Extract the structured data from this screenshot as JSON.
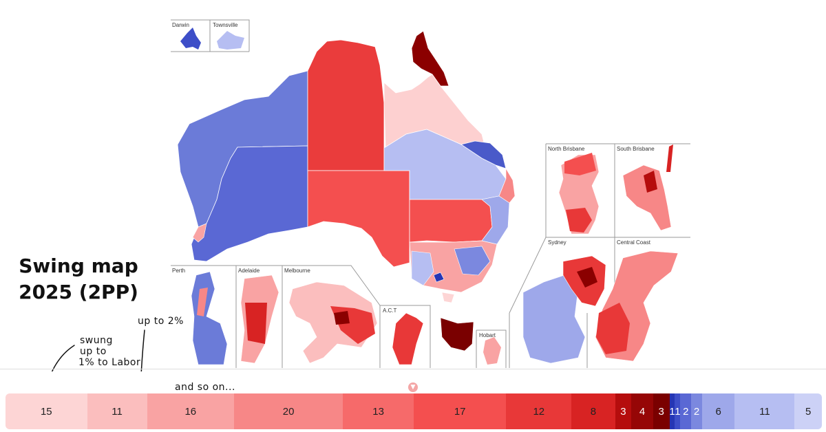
{
  "title": "Swing map 2025 (2PP)",
  "insets": {
    "darwin": "Darwin",
    "townsville": "Townsville",
    "north_brisbane": "North Brisbane",
    "south_brisbane": "South Brisbane",
    "sydney": "Sydney",
    "central_coast": "Central Coast",
    "perth": "Perth",
    "adelaide": "Adelaide",
    "melbourne": "Melbourne",
    "act": "A.C.T",
    "hobart": "Hobart"
  },
  "annotations": {
    "swung": "swung",
    "up_to": "up to",
    "one_pct": "1% to Labor",
    "up_to_2": "up to 2%",
    "and_so_on": "and so on..."
  },
  "legend": [
    {
      "count": "15",
      "color": "#fdd5d5"
    },
    {
      "count": "11",
      "color": "#fbbebe"
    },
    {
      "count": "16",
      "color": "#f9a3a3"
    },
    {
      "count": "20",
      "color": "#f78787"
    },
    {
      "count": "13",
      "color": "#f66a6a"
    },
    {
      "count": "17",
      "color": "#f44f4f"
    },
    {
      "count": "12",
      "color": "#e83838"
    },
    {
      "count": "8",
      "color": "#d82323"
    },
    {
      "count": "3",
      "color": "#b50d0d"
    },
    {
      "count": "4",
      "color": "#960606"
    },
    {
      "count": "3",
      "color": "#7a0000"
    },
    {
      "count": "1",
      "color": "#2536b5"
    },
    {
      "count": "1",
      "color": "#3d4ec8"
    },
    {
      "count": "2",
      "color": "#5a68d4"
    },
    {
      "count": "2",
      "color": "#7b88df"
    },
    {
      "count": "6",
      "color": "#9ea8ea"
    },
    {
      "count": "11",
      "color": "#b6bef2"
    },
    {
      "count": "5",
      "color": "#ccd1f6"
    }
  ],
  "colors": {
    "wa": "#6b7bd8",
    "wa_south": "#5a68d4",
    "nt": "#ea3c3c",
    "sa": "#f44f4f",
    "qld_north": "#fdd0d0",
    "qld_cape": "#8b0000",
    "qld_west": "#b6bef2",
    "nsw_west": "#f44f4f",
    "tas": "#7a0000"
  }
}
